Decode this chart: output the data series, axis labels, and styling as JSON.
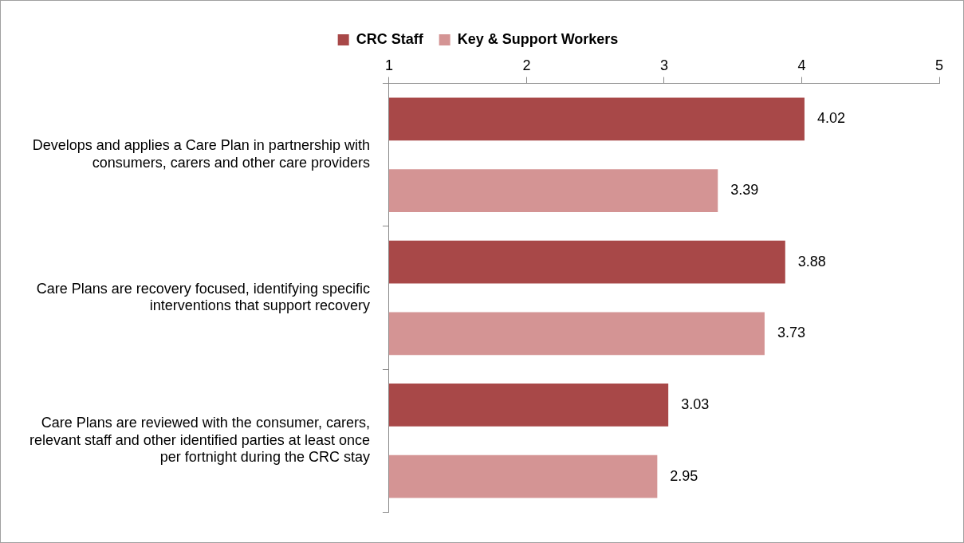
{
  "chart_data": {
    "type": "bar",
    "orientation": "horizontal",
    "categories": [
      "Develops and applies a Care Plan in partnership with consumers, carers and other care providers",
      "Care Plans are recovery focused, identifying specific interventions that support recovery",
      "Care Plans are reviewed with the consumer, carers, relevant staff and other identified parties at least once per fortnight during the CRC stay"
    ],
    "series": [
      {
        "name": "CRC Staff",
        "color": "#a84848",
        "values": [
          4.02,
          3.88,
          3.03
        ]
      },
      {
        "name": "Key & Support Workers",
        "color": "#d49494",
        "values": [
          3.39,
          3.73,
          2.95
        ]
      }
    ],
    "xlim": [
      1,
      5
    ],
    "xticks": [
      1,
      2,
      3,
      4,
      5
    ],
    "data_labels": true,
    "legend": "top",
    "grid": false
  }
}
